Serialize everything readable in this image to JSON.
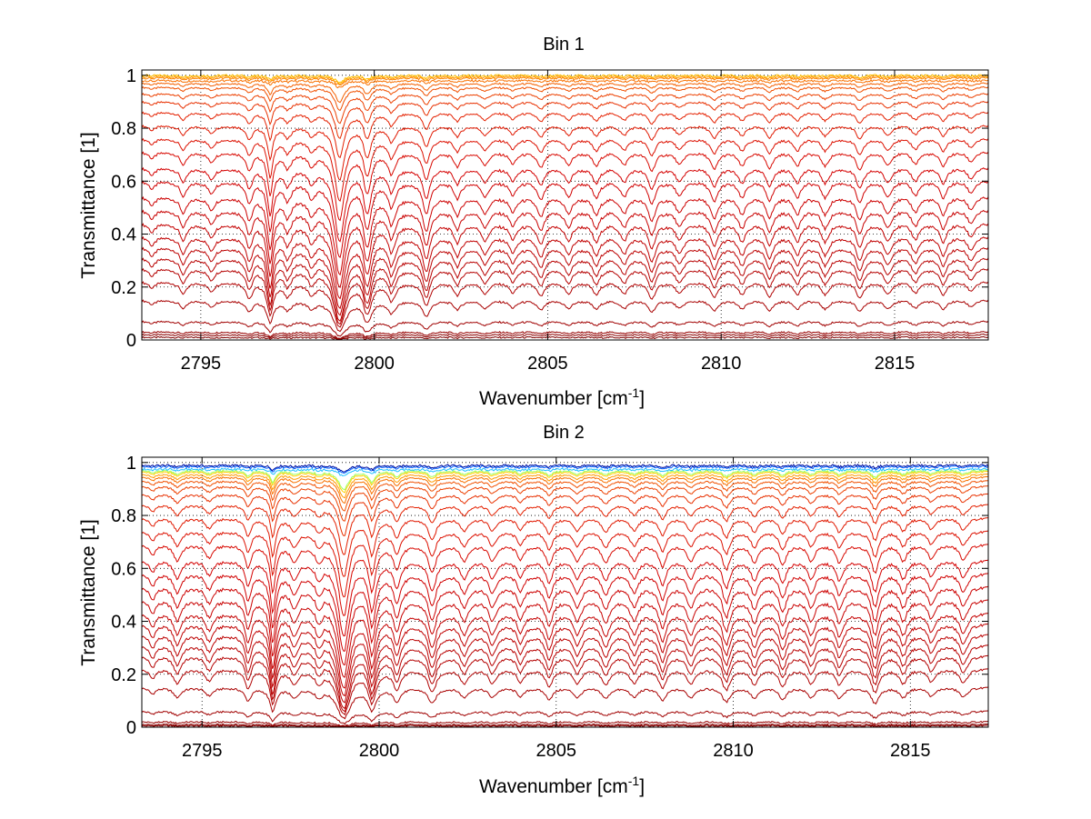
{
  "chart_data": [
    {
      "type": "line",
      "title": "Bin 1",
      "xlabel": "Wavenumber [cm",
      "xlabel_sup": "-1",
      "xlabel_tail": "]",
      "ylabel": "Transmittance [1]",
      "xlim": [
        2793.3,
        2817.7
      ],
      "ylim": [
        0,
        1.02
      ],
      "x_ticks": [
        2795,
        2800,
        2805,
        2810,
        2815
      ],
      "y_ticks": [
        0,
        0.2,
        0.4,
        0.6,
        0.8,
        1
      ],
      "x_tick_labels": [
        "2795",
        "2800",
        "2805",
        "2810",
        "2815"
      ],
      "y_tick_labels": [
        "0",
        "0.2",
        "0.4",
        "0.6",
        "0.8",
        "1"
      ],
      "grid": "dotted",
      "data_x_range": [
        2793.3,
        2817.7
      ],
      "absorption_lines": [
        {
          "x": 2793.6,
          "depth": 0.1,
          "width": 0.1
        },
        {
          "x": 2794.5,
          "depth": 0.2,
          "width": 0.12
        },
        {
          "x": 2795.3,
          "depth": 0.15,
          "width": 0.12
        },
        {
          "x": 2796.4,
          "depth": 0.3,
          "width": 0.1
        },
        {
          "x": 2797.0,
          "depth": 0.75,
          "width": 0.09
        },
        {
          "x": 2797.5,
          "depth": 0.25,
          "width": 0.12
        },
        {
          "x": 2798.2,
          "depth": 0.2,
          "width": 0.12
        },
        {
          "x": 2799.0,
          "depth": 1.3,
          "width": 0.16
        },
        {
          "x": 2799.8,
          "depth": 0.7,
          "width": 0.12
        },
        {
          "x": 2800.5,
          "depth": 0.35,
          "width": 0.12
        },
        {
          "x": 2801.5,
          "depth": 0.45,
          "width": 0.12
        },
        {
          "x": 2802.4,
          "depth": 0.22,
          "width": 0.12
        },
        {
          "x": 2803.2,
          "depth": 0.2,
          "width": 0.12
        },
        {
          "x": 2804.0,
          "depth": 0.18,
          "width": 0.12
        },
        {
          "x": 2804.8,
          "depth": 0.25,
          "width": 0.12
        },
        {
          "x": 2805.6,
          "depth": 0.2,
          "width": 0.12
        },
        {
          "x": 2806.4,
          "depth": 0.22,
          "width": 0.12
        },
        {
          "x": 2807.2,
          "depth": 0.2,
          "width": 0.12
        },
        {
          "x": 2808.0,
          "depth": 0.3,
          "width": 0.12
        },
        {
          "x": 2808.8,
          "depth": 0.2,
          "width": 0.12
        },
        {
          "x": 2809.8,
          "depth": 0.28,
          "width": 0.12
        },
        {
          "x": 2810.6,
          "depth": 0.22,
          "width": 0.12
        },
        {
          "x": 2811.4,
          "depth": 0.25,
          "width": 0.12
        },
        {
          "x": 2812.2,
          "depth": 0.2,
          "width": 0.12
        },
        {
          "x": 2813.0,
          "depth": 0.22,
          "width": 0.12
        },
        {
          "x": 2814.0,
          "depth": 0.3,
          "width": 0.12
        },
        {
          "x": 2814.8,
          "depth": 0.2,
          "width": 0.12
        },
        {
          "x": 2815.6,
          "depth": 0.18,
          "width": 0.12
        },
        {
          "x": 2816.4,
          "depth": 0.22,
          "width": 0.12
        },
        {
          "x": 2817.2,
          "depth": 0.15,
          "width": 0.12
        }
      ],
      "series_baselines": [
        0.01,
        0.02,
        0.03,
        0.07,
        0.15,
        0.22,
        0.27,
        0.31,
        0.35,
        0.39,
        0.44,
        0.49,
        0.54,
        0.6,
        0.65,
        0.71,
        0.76,
        0.81,
        0.86,
        0.9,
        0.93,
        0.955,
        0.97,
        0.98,
        0.99,
        0.995,
        1.0
      ],
      "series_colors": [
        "#7f0000",
        "#8a0000",
        "#960000",
        "#a00000",
        "#a80000",
        "#b00000",
        "#b40000",
        "#b80000",
        "#bc0000",
        "#c00000",
        "#c40000",
        "#c80000",
        "#cc0000",
        "#d00000",
        "#d40000",
        "#d80800",
        "#dc1000",
        "#e01800",
        "#e42000",
        "#e83000",
        "#ec4000",
        "#f05000",
        "#f46000",
        "#f87000",
        "#fc8000",
        "#ff9a00",
        "#ffc000"
      ]
    },
    {
      "type": "line",
      "title": "Bin 2",
      "xlabel": "Wavenumber [cm",
      "xlabel_sup": "-1",
      "xlabel_tail": "]",
      "ylabel": "Transmittance [1]",
      "xlim": [
        2793.3,
        2817.2
      ],
      "ylim": [
        0,
        1.02
      ],
      "x_ticks": [
        2795,
        2800,
        2805,
        2810,
        2815
      ],
      "y_ticks": [
        0,
        0.2,
        0.4,
        0.6,
        0.8,
        1
      ],
      "x_tick_labels": [
        "2795",
        "2800",
        "2805",
        "2810",
        "2815"
      ],
      "y_tick_labels": [
        "0",
        "0.2",
        "0.4",
        "0.6",
        "0.8",
        "1"
      ],
      "grid": "dotted",
      "data_x_range": [
        2793.3,
        2817.2
      ],
      "absorption_lines": [
        {
          "x": 2793.6,
          "depth": 0.15,
          "width": 0.1
        },
        {
          "x": 2794.3,
          "depth": 0.25,
          "width": 0.12
        },
        {
          "x": 2795.2,
          "depth": 0.2,
          "width": 0.12
        },
        {
          "x": 2796.3,
          "depth": 0.35,
          "width": 0.1
        },
        {
          "x": 2797.0,
          "depth": 0.8,
          "width": 0.09
        },
        {
          "x": 2797.6,
          "depth": 0.25,
          "width": 0.12
        },
        {
          "x": 2798.3,
          "depth": 0.22,
          "width": 0.12
        },
        {
          "x": 2799.0,
          "depth": 1.35,
          "width": 0.16
        },
        {
          "x": 2799.8,
          "depth": 0.75,
          "width": 0.12
        },
        {
          "x": 2800.5,
          "depth": 0.35,
          "width": 0.12
        },
        {
          "x": 2801.5,
          "depth": 0.45,
          "width": 0.12
        },
        {
          "x": 2802.4,
          "depth": 0.25,
          "width": 0.12
        },
        {
          "x": 2803.2,
          "depth": 0.25,
          "width": 0.12
        },
        {
          "x": 2804.0,
          "depth": 0.22,
          "width": 0.12
        },
        {
          "x": 2804.8,
          "depth": 0.3,
          "width": 0.12
        },
        {
          "x": 2805.6,
          "depth": 0.25,
          "width": 0.12
        },
        {
          "x": 2806.4,
          "depth": 0.28,
          "width": 0.12
        },
        {
          "x": 2807.2,
          "depth": 0.25,
          "width": 0.12
        },
        {
          "x": 2808.0,
          "depth": 0.35,
          "width": 0.12
        },
        {
          "x": 2808.8,
          "depth": 0.25,
          "width": 0.12
        },
        {
          "x": 2809.8,
          "depth": 0.4,
          "width": 0.12
        },
        {
          "x": 2810.6,
          "depth": 0.28,
          "width": 0.12
        },
        {
          "x": 2811.4,
          "depth": 0.3,
          "width": 0.12
        },
        {
          "x": 2812.2,
          "depth": 0.25,
          "width": 0.12
        },
        {
          "x": 2813.0,
          "depth": 0.28,
          "width": 0.12
        },
        {
          "x": 2814.0,
          "depth": 0.45,
          "width": 0.12
        },
        {
          "x": 2814.8,
          "depth": 0.25,
          "width": 0.12
        },
        {
          "x": 2815.6,
          "depth": 0.22,
          "width": 0.12
        },
        {
          "x": 2816.5,
          "depth": 0.25,
          "width": 0.12
        }
      ],
      "series_baselines": [
        0.005,
        0.01,
        0.02,
        0.06,
        0.15,
        0.22,
        0.27,
        0.31,
        0.35,
        0.39,
        0.43,
        0.48,
        0.53,
        0.58,
        0.63,
        0.69,
        0.74,
        0.79,
        0.84,
        0.88,
        0.91,
        0.93,
        0.945,
        0.955,
        0.965,
        0.97,
        0.975,
        0.985,
        0.99
      ],
      "series_colors": [
        "#7f0000",
        "#8a0000",
        "#960000",
        "#a00000",
        "#a80000",
        "#b00000",
        "#b40000",
        "#b80000",
        "#bc0000",
        "#c00000",
        "#c40000",
        "#c80000",
        "#cc0000",
        "#d00000",
        "#d40000",
        "#d80800",
        "#dc1000",
        "#e01800",
        "#e42000",
        "#e83000",
        "#ec4000",
        "#f05000",
        "#f87000",
        "#ff9a00",
        "#ffd000",
        "#9fff60",
        "#20c0ff",
        "#0060ff",
        "#0010a0"
      ]
    }
  ]
}
